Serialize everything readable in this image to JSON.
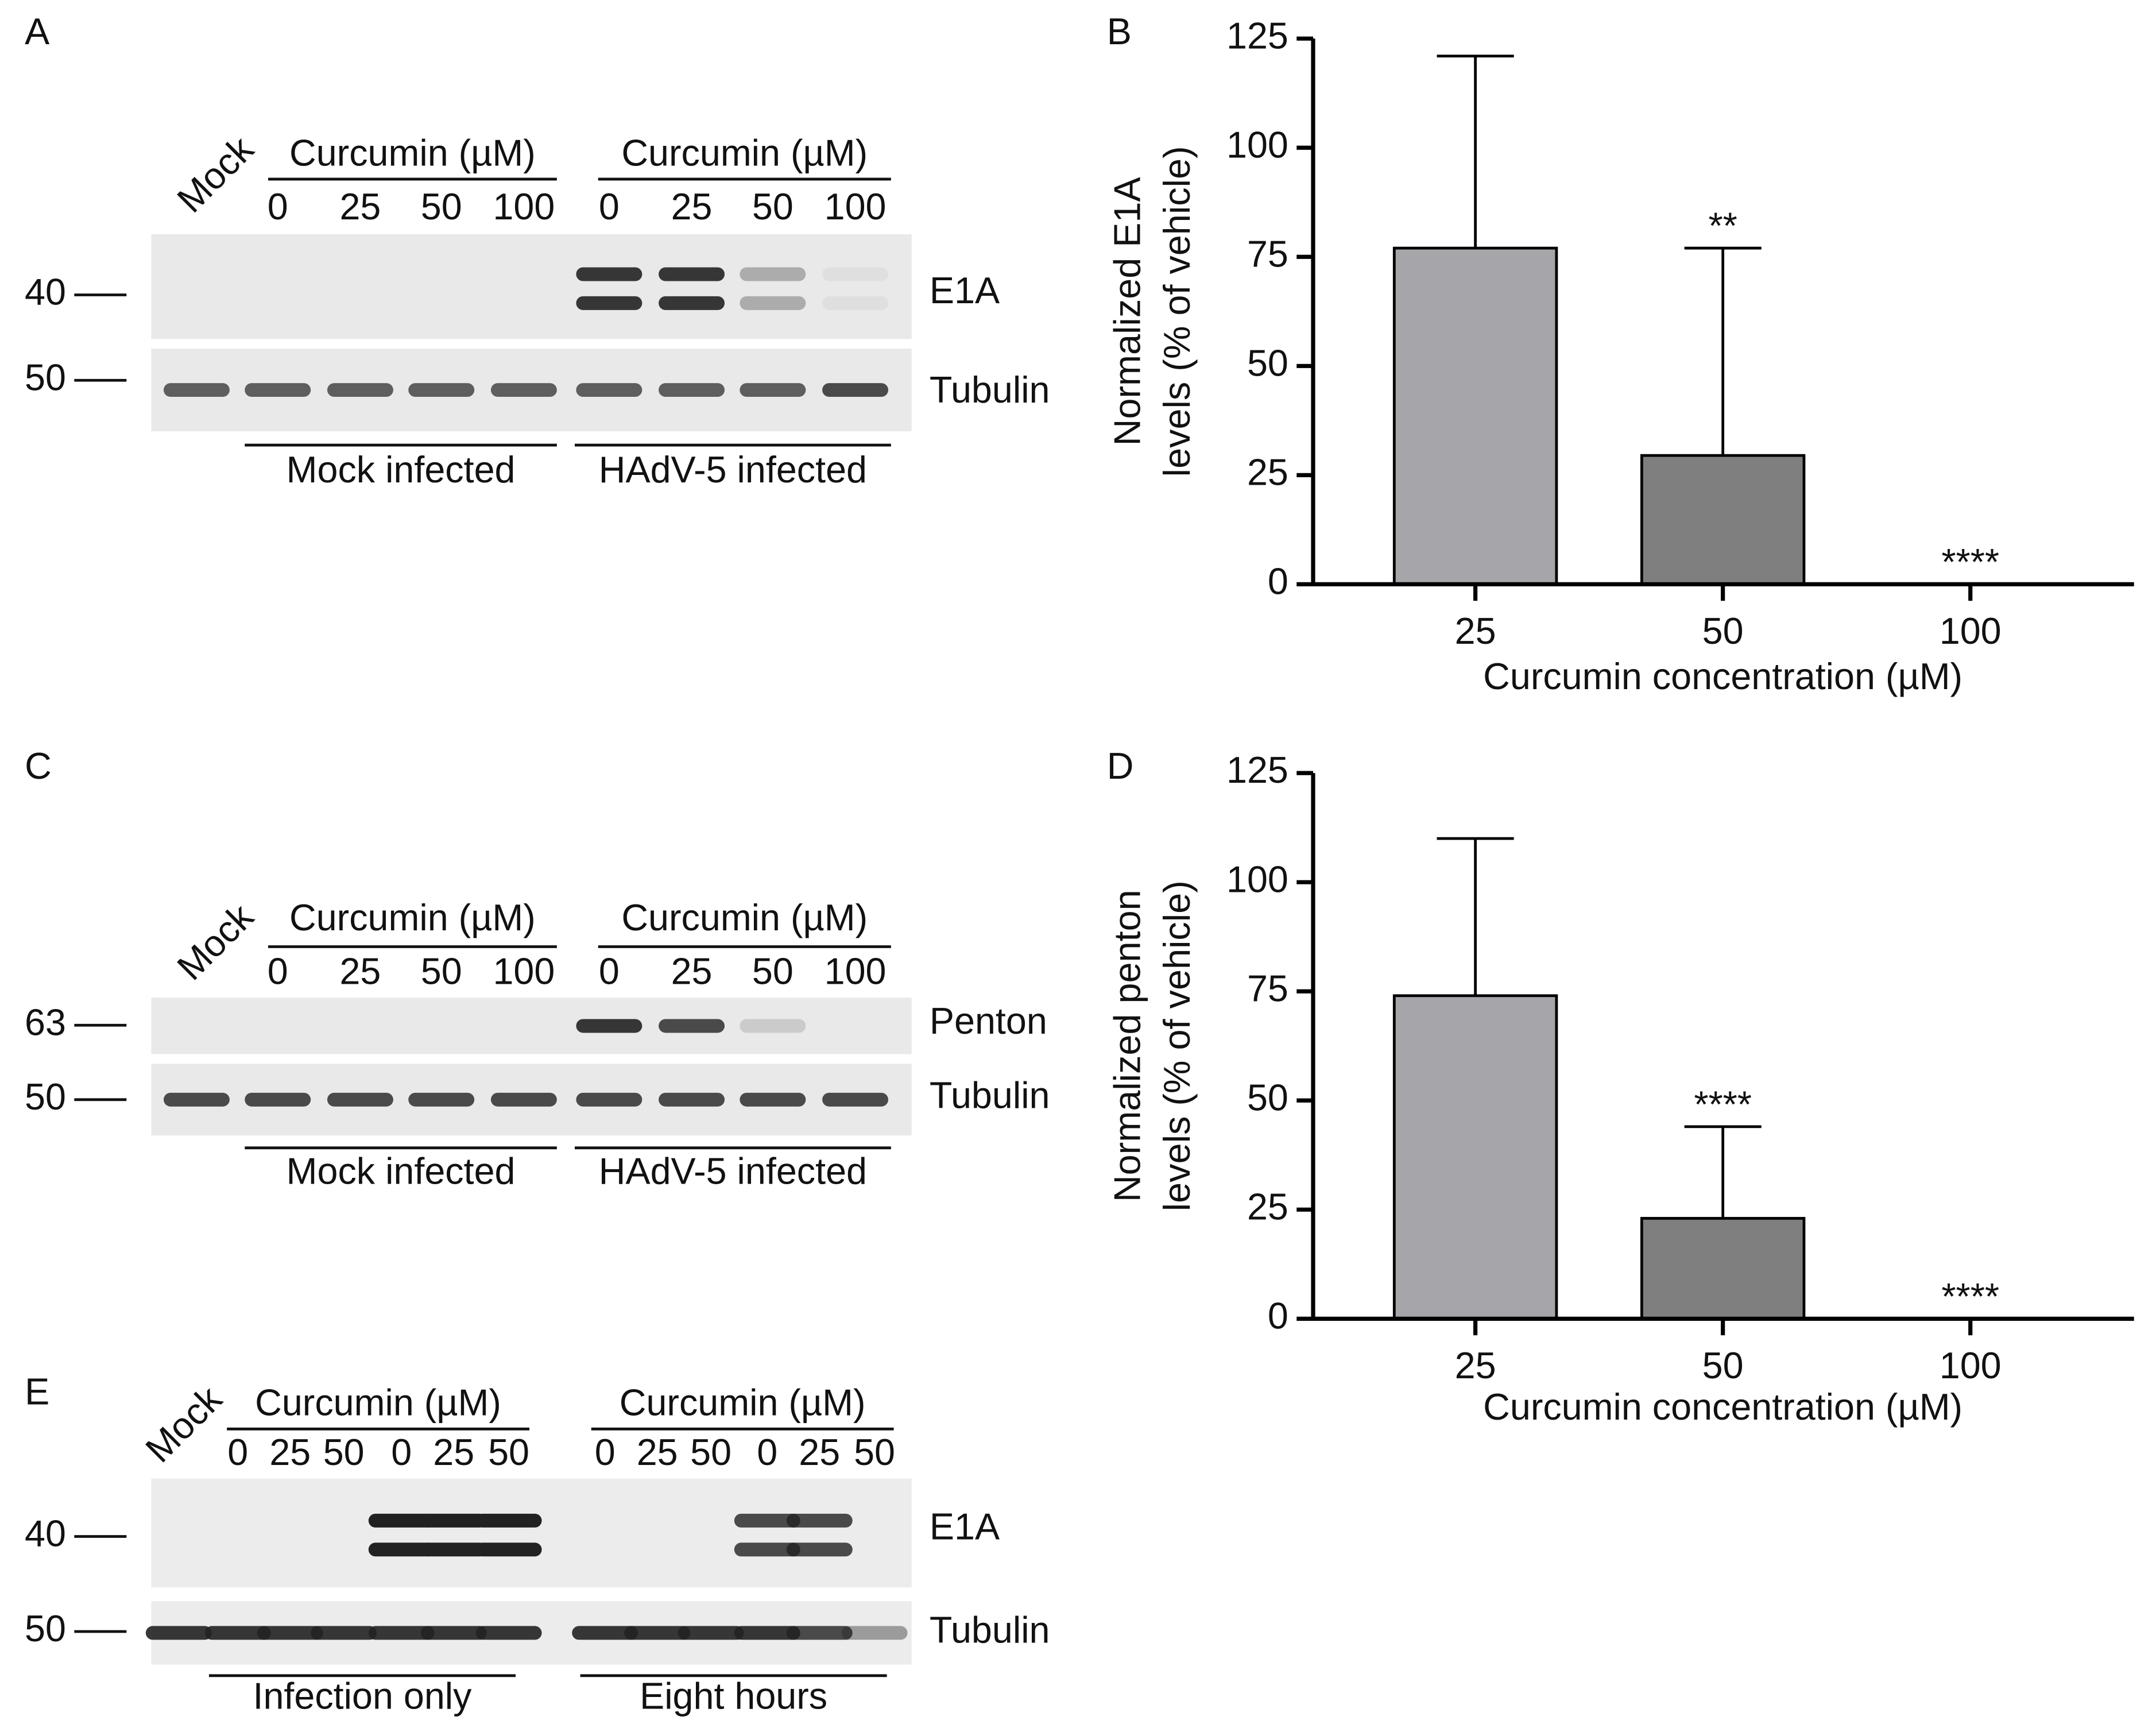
{
  "blots": [
    {
      "label": "A",
      "mock": "Mock",
      "groups": [
        {
          "title": "Curcumin (µM)",
          "lanes": [
            "0",
            "25",
            "50",
            "100"
          ]
        },
        {
          "title": "Curcumin (µM)",
          "lanes": [
            "0",
            "25",
            "50",
            "100"
          ]
        }
      ],
      "bands": [
        {
          "name": "E1A",
          "marker": "40"
        },
        {
          "name": "Tubulin",
          "marker": "50"
        }
      ],
      "conditions": [
        "Mock infected",
        "HAdV-5 infected"
      ]
    },
    {
      "label": "C",
      "mock": "Mock",
      "groups": [
        {
          "title": "Curcumin (µM)",
          "lanes": [
            "0",
            "25",
            "50",
            "100"
          ]
        },
        {
          "title": "Curcumin (µM)",
          "lanes": [
            "0",
            "25",
            "50",
            "100"
          ]
        }
      ],
      "bands": [
        {
          "name": "Penton",
          "marker": "63"
        },
        {
          "name": "Tubulin",
          "marker": "50"
        }
      ],
      "conditions": [
        "Mock infected",
        "HAdV-5 infected"
      ]
    },
    {
      "label": "E",
      "mock": "Mock",
      "groups": [
        {
          "title": "Curcumin (µM)",
          "lanes": [
            "0",
            "25",
            "50",
            "0",
            "25",
            "50"
          ]
        },
        {
          "title": "Curcumin (µM)",
          "lanes": [
            "0",
            "25",
            "50",
            "0",
            "25",
            "50"
          ]
        }
      ],
      "bands": [
        {
          "name": "E1A",
          "marker": "40"
        },
        {
          "name": "Tubulin",
          "marker": "50"
        }
      ],
      "conditions": [
        "Infection only",
        "Eight hours"
      ]
    }
  ],
  "chart_data": [
    {
      "type": "bar",
      "panel": "B",
      "ylabel": [
        "Normalized E1A",
        "levels (% of vehicle)"
      ],
      "xlabel": "Curcumin concentration (µM)",
      "categories": [
        "25",
        "50",
        "100"
      ],
      "values": [
        77,
        29.5,
        0
      ],
      "errors": [
        44,
        47.5,
        0
      ],
      "colors": [
        "#a6a6aa",
        "#7f7f7f",
        "#7f7f7f"
      ],
      "significance": [
        null,
        "**",
        "****"
      ],
      "ylim": [
        0,
        125
      ],
      "yticks": [
        0,
        25,
        50,
        75,
        100,
        125
      ]
    },
    {
      "type": "bar",
      "panel": "D",
      "ylabel": [
        "Normalized penton",
        "levels (% of vehicle)"
      ],
      "xlabel": "Curcumin concentration (µM)",
      "categories": [
        "25",
        "50",
        "100"
      ],
      "values": [
        74,
        23,
        0
      ],
      "errors": [
        36,
        21,
        0
      ],
      "colors": [
        "#a6a6aa",
        "#7f7f7f",
        "#7f7f7f"
      ],
      "significance": [
        null,
        "****",
        "****"
      ],
      "ylim": [
        0,
        125
      ],
      "yticks": [
        0,
        25,
        50,
        75,
        100,
        125
      ]
    }
  ]
}
